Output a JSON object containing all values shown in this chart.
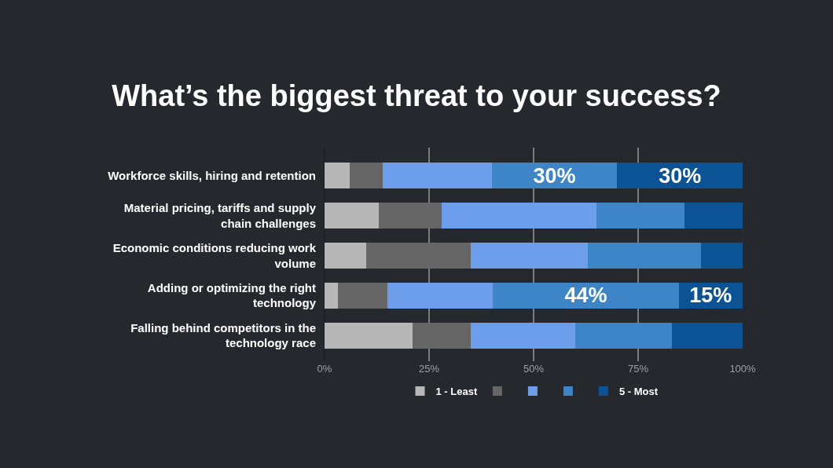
{
  "chart_data": {
    "type": "bar",
    "title": "What’s the biggest threat to your success?",
    "orientation": "horizontal",
    "stacked": true,
    "categories": [
      "Workforce skills, hiring and retention",
      "Material pricing, tariffs and supply chain challenges",
      "Economic conditions reducing work volume",
      "Adding or optimizing the right technology",
      "Falling behind competitors in the technology race"
    ],
    "series": [
      {
        "name": "1 - Least",
        "color": "#b7b7b7",
        "values": [
          6,
          13,
          10,
          3.2,
          21
        ]
      },
      {
        "color": "#666666",
        "values": [
          8,
          15,
          25,
          11.9,
          14
        ]
      },
      {
        "color": "#6d9eeb",
        "values": [
          26,
          37,
          28,
          25.2,
          25
        ]
      },
      {
        "color": "#3d85c6",
        "values": [
          30,
          21,
          27,
          44.4,
          23
        ],
        "value_labels": [
          "30%",
          null,
          null,
          "44%",
          null
        ]
      },
      {
        "name": "5 - Most",
        "color": "#0b5394",
        "values": [
          30,
          14,
          10,
          15.3,
          17
        ],
        "value_labels": [
          "30%",
          null,
          null,
          "15%",
          null
        ]
      }
    ],
    "xlim": [
      0,
      100
    ],
    "xticks": [
      {
        "value": 0,
        "label": "0%"
      },
      {
        "value": 25,
        "label": "25%"
      },
      {
        "value": 50,
        "label": "50%"
      },
      {
        "value": 75,
        "label": "75%"
      },
      {
        "value": 100,
        "label": "100%"
      }
    ],
    "grid": "x",
    "legend": "bottom"
  }
}
